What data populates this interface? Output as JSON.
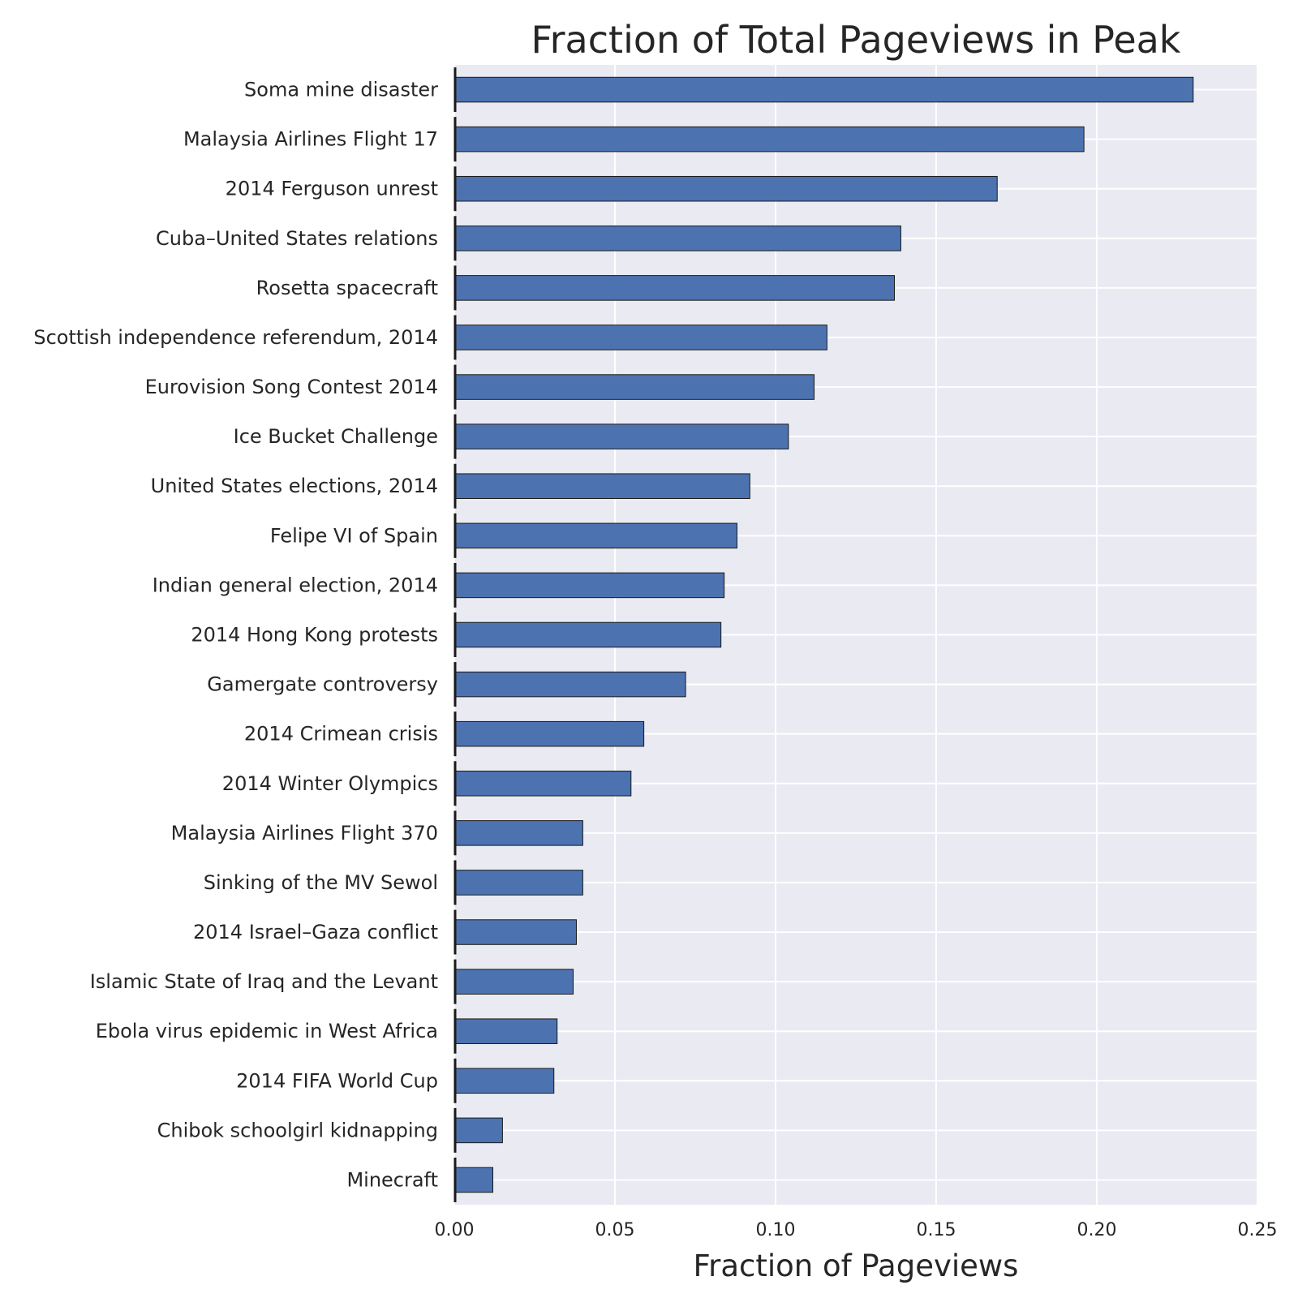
{
  "chart_data": {
    "type": "bar",
    "orientation": "horizontal",
    "title": "Fraction of Total Pageviews in Peak",
    "xlabel": "Fraction of Pageviews",
    "ylabel": "",
    "xlim": [
      0.0,
      0.25
    ],
    "x_ticks": [
      "0.00",
      "0.05",
      "0.10",
      "0.15",
      "0.20",
      "0.25"
    ],
    "grid": true,
    "legend": "none",
    "colors": {
      "bar": "#4c72b0",
      "background": "#eaeaf2",
      "grid": "#ffffff",
      "text": "#262626"
    },
    "categories": [
      "Soma mine disaster",
      "Malaysia Airlines Flight 17",
      "2014 Ferguson unrest",
      "Cuba–United States relations",
      "Rosetta spacecraft",
      "Scottish independence referendum, 2014",
      "Eurovision Song Contest 2014",
      "Ice Bucket Challenge",
      "United States elections, 2014",
      "Felipe VI of Spain",
      "Indian general election, 2014",
      "2014 Hong Kong protests",
      "Gamergate controversy",
      "2014 Crimean crisis",
      "2014 Winter Olympics",
      "Malaysia Airlines Flight 370",
      "Sinking of the MV Sewol",
      "2014 Israel–Gaza conflict",
      "Islamic State of Iraq and the Levant",
      "Ebola virus epidemic in West Africa",
      "2014 FIFA World Cup",
      "Chibok schoolgirl kidnapping",
      "Minecraft"
    ],
    "values": [
      0.23,
      0.196,
      0.169,
      0.139,
      0.137,
      0.116,
      0.112,
      0.104,
      0.092,
      0.088,
      0.084,
      0.083,
      0.072,
      0.059,
      0.055,
      0.04,
      0.04,
      0.038,
      0.037,
      0.032,
      0.031,
      0.015,
      0.012
    ]
  }
}
